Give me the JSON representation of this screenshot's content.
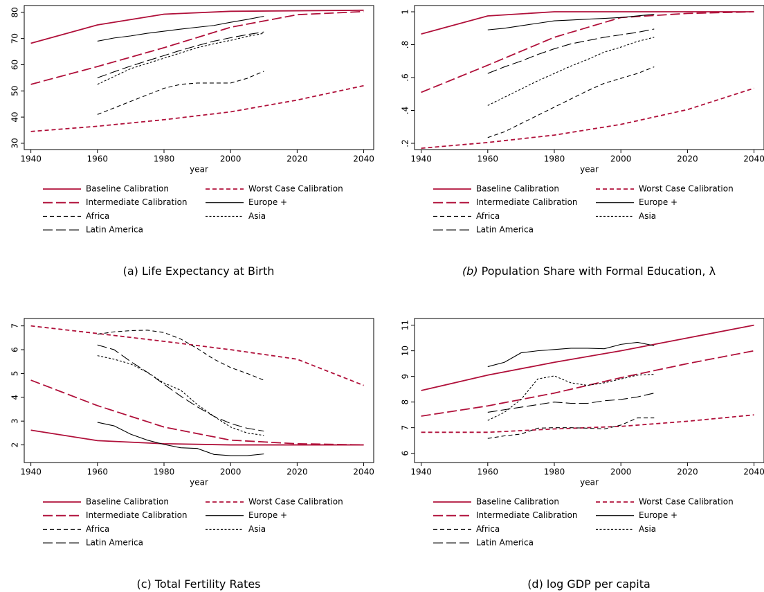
{
  "chart_data": [
    {
      "type": "line",
      "caption_label": "(a)",
      "caption": "Life Expectancy at Birth",
      "xlabel": "year",
      "xlim": [
        1938,
        2043
      ],
      "xticks": [
        1940,
        1960,
        1980,
        2000,
        2020,
        2040
      ],
      "ylim": [
        27.6,
        82.6
      ],
      "yticks": [
        30,
        40,
        50,
        60,
        70,
        80
      ],
      "series": [
        {
          "name": "Baseline Calibration",
          "color": "#b0103a",
          "linestyle": "solid",
          "x": [
            1940,
            1960,
            1980,
            2000,
            2020,
            2040
          ],
          "values": [
            68.2,
            75.2,
            79.3,
            80.4,
            80.6,
            80.8
          ]
        },
        {
          "name": "Worst Case Calibration",
          "color": "#b0103a",
          "linestyle": "dash",
          "x": [
            1940,
            1960,
            1980,
            2000,
            2020,
            2040
          ],
          "values": [
            34.5,
            36.5,
            39,
            42,
            46.5,
            52
          ]
        },
        {
          "name": "Intermediate Calibration",
          "color": "#b0103a",
          "linestyle": "longdash",
          "x": [
            1940,
            1960,
            1980,
            2000,
            2020,
            2040
          ],
          "values": [
            52.5,
            59.3,
            66.5,
            74.3,
            79.1,
            80.3
          ]
        },
        {
          "name": "Europe +",
          "color": "#000000",
          "linestyle": "solid",
          "x": [
            1960,
            1965,
            1970,
            1975,
            1980,
            1985,
            1990,
            1995,
            2000,
            2005,
            2010
          ],
          "values": [
            69,
            70.2,
            71,
            72,
            72.8,
            73.6,
            74.3,
            75,
            76.2,
            77.3,
            78.5
          ]
        },
        {
          "name": "Africa",
          "color": "#000000",
          "linestyle": "dash",
          "x": [
            1960,
            1965,
            1970,
            1975,
            1980,
            1985,
            1990,
            1995,
            2000,
            2005,
            2010
          ],
          "values": [
            41,
            43.5,
            46,
            48.5,
            51,
            52.5,
            53,
            53,
            53,
            54.8,
            57.5
          ]
        },
        {
          "name": "Asia",
          "color": "#000000",
          "linestyle": "shortdash",
          "x": [
            1960,
            1965,
            1970,
            1975,
            1980,
            1985,
            1990,
            1995,
            2000,
            2005,
            2010
          ],
          "values": [
            52.5,
            55.5,
            58.5,
            60.5,
            62.5,
            64.5,
            66.5,
            68,
            69.3,
            70.8,
            72
          ]
        },
        {
          "name": "Latin America",
          "color": "#000000",
          "linestyle": "longdash",
          "x": [
            1960,
            1965,
            1970,
            1975,
            1980,
            1985,
            1990,
            1995,
            2000,
            2005,
            2010
          ],
          "values": [
            55,
            57.3,
            59.5,
            61.5,
            63.5,
            65.5,
            67.3,
            69,
            70.3,
            71.5,
            72.5
          ]
        }
      ]
    },
    {
      "type": "line",
      "caption_label": "(b)",
      "caption": "Population Share with Formal Education, λ",
      "xlabel": "year",
      "xlim": [
        1938,
        2043
      ],
      "xticks": [
        1940,
        1960,
        1980,
        2000,
        2020,
        2040
      ],
      "ylim": [
        0.162,
        1.038
      ],
      "yticks": [
        {
          "value": 0.2,
          "label": ".2"
        },
        {
          "value": 0.4,
          "label": ".4"
        },
        {
          "value": 0.6,
          "label": ".6"
        },
        {
          "value": 0.8,
          "label": ".8"
        },
        1
      ],
      "series": [
        {
          "name": "Baseline Calibration",
          "color": "#b0103a",
          "linestyle": "solid",
          "x": [
            1940,
            1960,
            1980,
            2000,
            2020,
            2040
          ],
          "values": [
            0.865,
            0.975,
            1.0,
            1.0,
            1.0,
            1.0
          ]
        },
        {
          "name": "Worst Case Calibration",
          "color": "#b0103a",
          "linestyle": "dash",
          "x": [
            1940,
            1960,
            1980,
            2000,
            2020,
            2040
          ],
          "values": [
            0.17,
            0.205,
            0.25,
            0.315,
            0.405,
            0.535
          ]
        },
        {
          "name": "Intermediate Calibration",
          "color": "#b0103a",
          "linestyle": "longdash",
          "x": [
            1940,
            1960,
            1980,
            2000,
            2020,
            2040
          ],
          "values": [
            0.51,
            0.675,
            0.845,
            0.965,
            0.99,
            1.0
          ]
        },
        {
          "name": "Europe +",
          "color": "#000000",
          "linestyle": "solid",
          "x": [
            1960,
            1965,
            1970,
            1975,
            1980,
            1985,
            1990,
            1995,
            2000,
            2005,
            2010
          ],
          "values": [
            0.89,
            0.9,
            0.915,
            0.93,
            0.945,
            0.95,
            0.955,
            0.96,
            0.965,
            0.975,
            0.985
          ]
        },
        {
          "name": "Africa",
          "color": "#000000",
          "linestyle": "dash",
          "x": [
            1960,
            1965,
            1970,
            1975,
            1980,
            1985,
            1990,
            1995,
            2000,
            2005,
            2010
          ],
          "values": [
            0.235,
            0.27,
            0.32,
            0.37,
            0.42,
            0.47,
            0.52,
            0.565,
            0.595,
            0.625,
            0.665
          ]
        },
        {
          "name": "Asia",
          "color": "#000000",
          "linestyle": "shortdash",
          "x": [
            1960,
            1965,
            1970,
            1975,
            1980,
            1985,
            1990,
            1995,
            2000,
            2005,
            2010
          ],
          "values": [
            0.43,
            0.48,
            0.53,
            0.58,
            0.625,
            0.67,
            0.71,
            0.755,
            0.785,
            0.82,
            0.845
          ]
        },
        {
          "name": "Latin America",
          "color": "#000000",
          "linestyle": "longdash",
          "x": [
            1960,
            1965,
            1970,
            1975,
            1980,
            1985,
            1990,
            1995,
            2000,
            2005,
            2010
          ],
          "values": [
            0.625,
            0.665,
            0.7,
            0.74,
            0.775,
            0.805,
            0.825,
            0.845,
            0.86,
            0.875,
            0.895
          ]
        }
      ]
    },
    {
      "type": "line",
      "caption_label": "(c)",
      "caption": "Total Fertility Rates",
      "xlabel": "year",
      "xlim": [
        1938,
        2043
      ],
      "xticks": [
        1940,
        1960,
        1980,
        2000,
        2020,
        2040
      ],
      "ylim": [
        1.26,
        7.31
      ],
      "yticks": [
        2,
        3,
        4,
        5,
        6,
        7
      ],
      "series": [
        {
          "name": "Baseline Calibration",
          "color": "#b0103a",
          "linestyle": "solid",
          "x": [
            1940,
            1960,
            1980,
            2000,
            2020,
            2040
          ],
          "values": [
            2.62,
            2.18,
            2.05,
            2.0,
            2.0,
            2.0
          ]
        },
        {
          "name": "Worst Case Calibration",
          "color": "#b0103a",
          "linestyle": "dash",
          "x": [
            1940,
            1960,
            1980,
            2000,
            2020,
            2040
          ],
          "values": [
            7.0,
            6.68,
            6.35,
            6.0,
            5.6,
            4.5
          ]
        },
        {
          "name": "Intermediate Calibration",
          "color": "#b0103a",
          "linestyle": "longdash",
          "x": [
            1940,
            1960,
            1980,
            2000,
            2020,
            2040
          ],
          "values": [
            4.72,
            3.65,
            2.75,
            2.2,
            2.05,
            2.0
          ]
        },
        {
          "name": "Europe +",
          "color": "#000000",
          "linestyle": "solid",
          "x": [
            1960,
            1965,
            1970,
            1975,
            1980,
            1985,
            1990,
            1995,
            2000,
            2005,
            2010
          ],
          "values": [
            2.95,
            2.8,
            2.45,
            2.2,
            2.02,
            1.88,
            1.85,
            1.6,
            1.55,
            1.55,
            1.62
          ]
        },
        {
          "name": "Africa",
          "color": "#000000",
          "linestyle": "dash",
          "x": [
            1960,
            1965,
            1970,
            1975,
            1980,
            1985,
            1990,
            1995,
            2000,
            2005,
            2010
          ],
          "values": [
            6.65,
            6.75,
            6.8,
            6.82,
            6.72,
            6.45,
            6.05,
            5.6,
            5.25,
            5.0,
            4.72
          ]
        },
        {
          "name": "Asia",
          "color": "#000000",
          "linestyle": "shortdash",
          "x": [
            1960,
            1965,
            1970,
            1975,
            1980,
            1985,
            1990,
            1995,
            2000,
            2005,
            2010
          ],
          "values": [
            5.75,
            5.6,
            5.4,
            5.05,
            4.6,
            4.3,
            3.7,
            3.2,
            2.75,
            2.5,
            2.4
          ]
        },
        {
          "name": "Latin America",
          "color": "#000000",
          "linestyle": "longdash",
          "x": [
            1960,
            1965,
            1970,
            1975,
            1980,
            1985,
            1990,
            1995,
            2000,
            2005,
            2010
          ],
          "values": [
            6.2,
            6.0,
            5.5,
            5.05,
            4.55,
            4.05,
            3.6,
            3.2,
            2.9,
            2.7,
            2.58
          ]
        }
      ]
    },
    {
      "type": "line",
      "caption_label": "(d)",
      "caption": "log GDP per capita",
      "xlabel": "year",
      "xlim": [
        1938,
        2043
      ],
      "xticks": [
        1940,
        1960,
        1980,
        2000,
        2020,
        2040
      ],
      "ylim": [
        5.64,
        11.26
      ],
      "yticks": [
        6,
        7,
        8,
        9,
        10,
        11
      ],
      "series": [
        {
          "name": "Baseline Calibration",
          "color": "#b0103a",
          "linestyle": "solid",
          "x": [
            1940,
            1960,
            1980,
            2000,
            2020,
            2040
          ],
          "values": [
            8.45,
            9.05,
            9.55,
            10.0,
            10.5,
            11.0
          ]
        },
        {
          "name": "Worst Case Calibration",
          "color": "#b0103a",
          "linestyle": "dash",
          "x": [
            1940,
            1960,
            1980,
            2000,
            2020,
            2040
          ],
          "values": [
            6.82,
            6.82,
            6.95,
            7.05,
            7.25,
            7.5
          ]
        },
        {
          "name": "Intermediate Calibration",
          "color": "#b0103a",
          "linestyle": "longdash",
          "x": [
            1940,
            1960,
            1980,
            2000,
            2020,
            2040
          ],
          "values": [
            7.45,
            7.85,
            8.35,
            8.95,
            9.5,
            10.0
          ]
        },
        {
          "name": "Europe +",
          "color": "#000000",
          "linestyle": "solid",
          "x": [
            1960,
            1965,
            1970,
            1975,
            1980,
            1985,
            1990,
            1995,
            2000,
            2005,
            2010
          ],
          "values": [
            9.38,
            9.55,
            9.92,
            10.0,
            10.05,
            10.1,
            10.1,
            10.08,
            10.25,
            10.33,
            10.2
          ]
        },
        {
          "name": "Africa",
          "color": "#000000",
          "linestyle": "dash",
          "x": [
            1960,
            1965,
            1970,
            1975,
            1980,
            1985,
            1990,
            1995,
            2000,
            2005,
            2010
          ],
          "values": [
            6.58,
            6.68,
            6.75,
            6.98,
            7.0,
            7.0,
            6.98,
            6.95,
            7.1,
            7.38,
            7.38
          ]
        },
        {
          "name": "Asia",
          "color": "#000000",
          "linestyle": "shortdash",
          "x": [
            1960,
            1965,
            1970,
            1975,
            1980,
            1985,
            1990,
            1995,
            2000,
            2005,
            2010
          ],
          "values": [
            7.28,
            7.6,
            8.1,
            8.9,
            9.02,
            8.75,
            8.65,
            8.75,
            8.9,
            9.05,
            9.08
          ]
        },
        {
          "name": "Latin America",
          "color": "#000000",
          "linestyle": "longdash",
          "x": [
            1960,
            1965,
            1970,
            1975,
            1980,
            1985,
            1990,
            1995,
            2000,
            2005,
            2010
          ],
          "values": [
            7.6,
            7.7,
            7.8,
            7.9,
            8.0,
            7.95,
            7.95,
            8.05,
            8.1,
            8.2,
            8.35
          ]
        }
      ]
    }
  ]
}
